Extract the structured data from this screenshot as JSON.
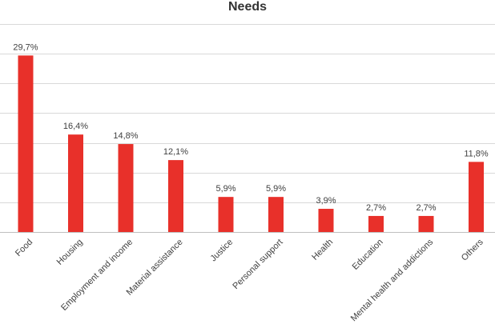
{
  "chart_data": {
    "type": "bar",
    "title": "Needs",
    "xlabel": "",
    "ylabel": "",
    "categories": [
      "Food",
      "Housing",
      "Employment and income",
      "Material assistance",
      "Justice",
      "Personal support",
      "Health",
      "Education",
      "Mental health and addictions",
      "Others"
    ],
    "values": [
      29.7,
      16.4,
      14.8,
      12.1,
      5.9,
      5.9,
      3.9,
      2.7,
      2.7,
      11.8
    ],
    "data_labels": [
      "29,7%",
      "16,4%",
      "14,8%",
      "12,1%",
      "5,9%",
      "5,9%",
      "3,9%",
      "2,7%",
      "2,7%",
      "11,8%"
    ],
    "ylim": [
      0,
      35
    ],
    "gridlines": [
      0,
      5,
      10,
      15,
      20,
      25,
      30,
      35
    ],
    "grid": true,
    "y_tick_labels_visible": false,
    "legend": "none",
    "bar_color": "#e8302a"
  }
}
